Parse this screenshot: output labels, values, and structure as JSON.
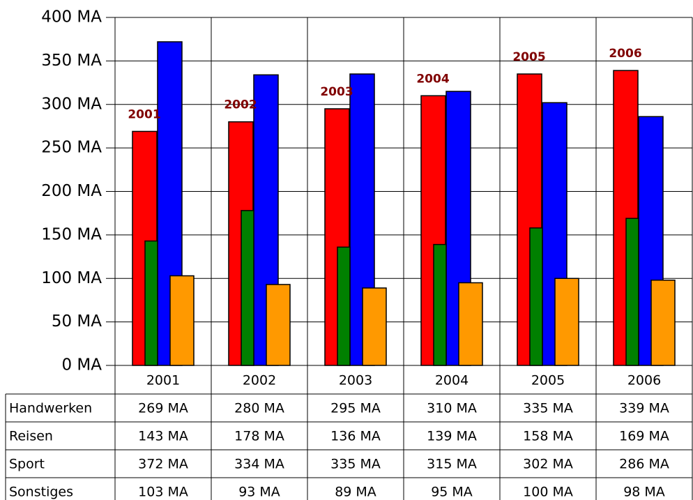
{
  "chart_data": {
    "type": "bar",
    "categories": [
      "2001",
      "2002",
      "2003",
      "2004",
      "2005",
      "2006"
    ],
    "series": [
      {
        "name": "Handwerken",
        "color": "#ff0000",
        "values": [
          269,
          280,
          295,
          310,
          335,
          339
        ],
        "value_labels": [
          "269 MA",
          "280 MA",
          "295 MA",
          "310 MA",
          "335 MA",
          "339 MA"
        ]
      },
      {
        "name": "Reisen",
        "color": "#008000",
        "values": [
          143,
          178,
          136,
          139,
          158,
          169
        ],
        "value_labels": [
          "143 MA",
          "178 MA",
          "136 MA",
          "139 MA",
          "158 MA",
          "169 MA"
        ]
      },
      {
        "name": "Sport",
        "color": "#0000ff",
        "values": [
          372,
          334,
          335,
          315,
          302,
          286
        ],
        "value_labels": [
          "372 MA",
          "334 MA",
          "335 MA",
          "315 MA",
          "302 MA",
          "286 MA"
        ]
      },
      {
        "name": "Sonstiges",
        "color": "#ff9900",
        "values": [
          103,
          93,
          89,
          95,
          100,
          98
        ],
        "value_labels": [
          "103 MA",
          "93 MA",
          "89 MA",
          "95 MA",
          "100 MA",
          "98 MA"
        ]
      }
    ],
    "ylim": [
      0,
      400
    ],
    "yticks": [
      {
        "value": 0,
        "label": "0 MA"
      },
      {
        "value": 50,
        "label": "50 MA"
      },
      {
        "value": 100,
        "label": "100 MA"
      },
      {
        "value": 150,
        "label": "150 MA"
      },
      {
        "value": 200,
        "label": "200 MA"
      },
      {
        "value": 250,
        "label": "250 MA"
      },
      {
        "value": 300,
        "label": "300 MA"
      },
      {
        "value": 350,
        "label": "350 MA"
      },
      {
        "value": 400,
        "label": "400 MA"
      }
    ],
    "grid": true,
    "annotation_color": "#800000"
  }
}
